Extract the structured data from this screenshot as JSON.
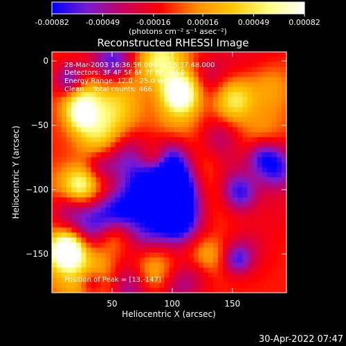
{
  "colors": {
    "background": "#000000",
    "text": "#ffffff",
    "colormap": [
      "#0000ff",
      "#7a1bd1",
      "#c8005a",
      "#ff0000",
      "#ff8c00",
      "#ffc800",
      "#ffff80",
      "#ffffff"
    ]
  },
  "colorbar": {
    "tick_labels": [
      "-0.00082",
      "-0.00049",
      "-0.00016",
      "0.00016",
      "0.00049",
      "0.00082"
    ],
    "tick_values": [
      -0.00082,
      -0.00049,
      -0.00016,
      0.00016,
      0.00049,
      0.00082
    ],
    "range": [
      -0.00082,
      0.00082
    ],
    "unit_label": "(photons cm⁻² s⁻¹ asec⁻²)"
  },
  "annotations": {
    "time_range": "28-Mar-2003 16:36:56.000 to 16:37:48.000",
    "detectors": "Detectors: 3F 4F 5F 6F 7F 8F, Att 0",
    "energy_range": "Energy Range: 12.0 - 25.0 keV",
    "clean_counts": "Clean    Total counts: 466.",
    "peak_position": "Position of Peak = [13,-147]"
  },
  "footer": {
    "timestamp": "30-Apr-2022 07:47"
  },
  "chart_data": {
    "type": "heatmap",
    "title": "Reconstructed RHESSI Image",
    "xlabel": "Heliocentric X (arcsec)",
    "ylabel": "Heliocentric Y (arcsec)",
    "xlim": [
      0,
      195
    ],
    "ylim": [
      -180,
      7
    ],
    "x_ticks": [
      50,
      100,
      150
    ],
    "y_ticks": [
      0,
      -50,
      -100,
      -150
    ],
    "x_tick_labels": [
      "50",
      "100",
      "150"
    ],
    "y_tick_labels": [
      "0",
      "−50",
      "−100",
      "−150"
    ],
    "grid": false,
    "value_range": [
      -0.00082,
      0.00082
    ],
    "peak": {
      "x": 13,
      "y": -147
    },
    "intensity_description": "noisy mottled map: red/orange/yellow blobs interleaved with purple and blue patches"
  }
}
